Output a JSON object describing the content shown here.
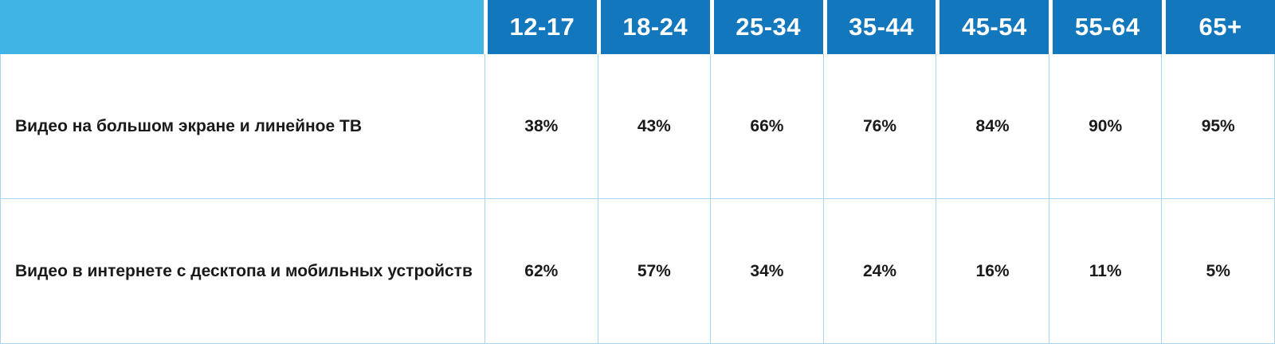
{
  "table": {
    "columns": [
      "12-17",
      "18-24",
      "25-34",
      "35-44",
      "45-54",
      "55-64",
      "65+"
    ],
    "rows": [
      {
        "label": "Видео на большом экране и линейное ТВ",
        "values": [
          "38%",
          "43%",
          "66%",
          "76%",
          "84%",
          "90%",
          "95%"
        ]
      },
      {
        "label": "Видео в интернете с десктопа и мобильных устройств",
        "values": [
          "62%",
          "57%",
          "34%",
          "24%",
          "16%",
          "11%",
          "5%"
        ]
      }
    ]
  },
  "colors": {
    "corner_bg": "#3fb4e5",
    "header_bg": "#1377bd",
    "header_text": "#ffffff",
    "grid_border": "#a9d3ee",
    "cell_text": "#1a1a1a"
  },
  "chart_data": {
    "type": "table",
    "title": "",
    "categories": [
      "12-17",
      "18-24",
      "25-34",
      "35-44",
      "45-54",
      "55-64",
      "65+"
    ],
    "series": [
      {
        "name": "Видео на большом экране и линейное ТВ",
        "values": [
          38,
          43,
          66,
          76,
          84,
          90,
          95
        ]
      },
      {
        "name": "Видео в интернете с десктопа и мобильных устройств",
        "values": [
          62,
          57,
          34,
          24,
          16,
          11,
          5
        ]
      }
    ],
    "unit": "%",
    "layout": "age-group columns with row labels, blue header band"
  }
}
